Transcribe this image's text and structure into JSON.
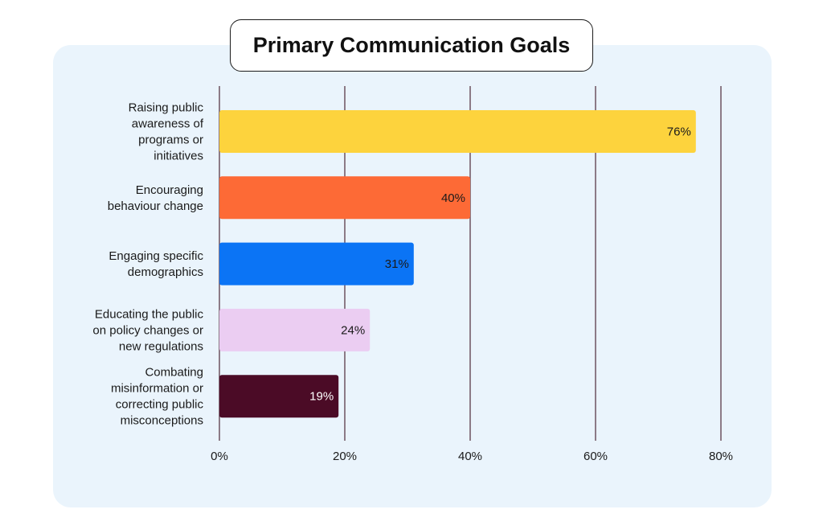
{
  "chart_data": {
    "type": "bar",
    "orientation": "horizontal",
    "title": "Primary Communication Goals",
    "xlabel": "",
    "ylabel": "",
    "xlim": [
      0,
      80
    ],
    "grid": true,
    "categories": [
      [
        "Raising public",
        "awareness of",
        "programs or",
        "initiatives"
      ],
      [
        "Encouraging",
        "behaviour change"
      ],
      [
        "Engaging specific",
        "demographics"
      ],
      [
        "Educating the public",
        "on policy changes or",
        "new regulations"
      ],
      [
        "Combating",
        "misinformation or",
        "correcting public",
        "misconceptions"
      ]
    ],
    "values": [
      76,
      40,
      31,
      24,
      19
    ],
    "value_labels": [
      "76%",
      "40%",
      "31%",
      "24%",
      "19%"
    ],
    "colors": [
      "#fdd33d",
      "#fd6a36",
      "#0b74f5",
      "#ebcdf2",
      "#4b0b26"
    ],
    "label_colors": [
      "#1a1a1a",
      "#1a1a1a",
      "#1a1a1a",
      "#1a1a1a",
      "#ffffff"
    ],
    "xticks": [
      0,
      20,
      40,
      60,
      80
    ],
    "xtick_labels": [
      "0%",
      "20%",
      "40%",
      "60%",
      "80%"
    ],
    "gridline_color": "#5a3a48",
    "background_color": "#eaf4fc"
  }
}
